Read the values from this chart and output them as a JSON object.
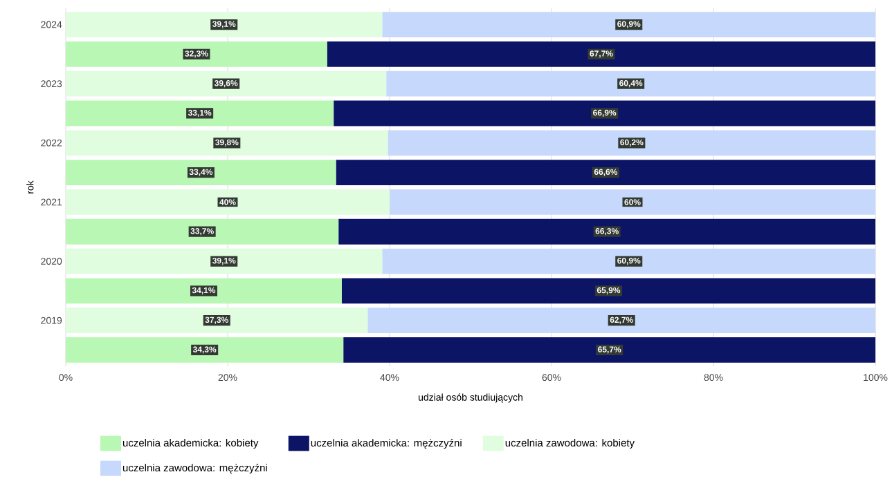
{
  "chart_data": {
    "type": "bar",
    "orientation": "horizontal",
    "stacked": true,
    "xlabel": "udział osób studiujących",
    "ylabel": "rok",
    "categories": [
      "2024",
      null,
      "2023",
      null,
      "2022",
      null,
      "2021",
      null,
      "2020",
      null,
      "2019",
      null
    ],
    "series": [
      {
        "name": "uczelnia akademicka: kobiety",
        "color": "#b9f7b4",
        "values": [
          null,
          32.3,
          null,
          33.1,
          null,
          33.4,
          null,
          33.7,
          null,
          34.1,
          null,
          34.3
        ],
        "value_labels": [
          null,
          "32,3%",
          null,
          "33,1%",
          null,
          "33,4%",
          null,
          "33,7%",
          null,
          "34,1%",
          null,
          "34,3%"
        ]
      },
      {
        "name": "uczelnia akademicka: mężczyźni",
        "color": "#0c1466",
        "values": [
          null,
          67.7,
          null,
          66.9,
          null,
          66.6,
          null,
          66.3,
          null,
          65.9,
          null,
          65.7
        ],
        "value_labels": [
          null,
          "67,7%",
          null,
          "66,9%",
          null,
          "66,6%",
          null,
          "66,3%",
          null,
          "65,9%",
          null,
          "65,7%"
        ]
      },
      {
        "name": "uczelnia zawodowa: kobiety",
        "color": "#e0fde0",
        "values": [
          39.1,
          null,
          39.6,
          null,
          39.8,
          null,
          40,
          null,
          39.1,
          null,
          37.3,
          null
        ],
        "value_labels": [
          "39,1%",
          null,
          "39,6%",
          null,
          "39,8%",
          null,
          "40%",
          null,
          "39,1%",
          null,
          "37,3%",
          null
        ]
      },
      {
        "name": "uczelnia zawodowa: mężczyźni",
        "color": "#c6d8fb",
        "values": [
          60.9,
          null,
          60.4,
          null,
          60.2,
          null,
          60,
          null,
          60.9,
          null,
          62.7,
          null
        ],
        "value_labels": [
          "60,9%",
          null,
          "60,4%",
          null,
          "60,2%",
          null,
          "60%",
          null,
          "60,9%",
          null,
          "62,7%",
          null
        ]
      }
    ],
    "xlim": [
      0,
      100
    ],
    "xticks": [
      {
        "value": 0,
        "label": "0%"
      },
      {
        "value": 20,
        "label": "20%"
      },
      {
        "value": 40,
        "label": "40%"
      },
      {
        "value": 60,
        "label": "60%"
      },
      {
        "value": 80,
        "label": "80%"
      },
      {
        "value": 100,
        "label": "100%"
      }
    ],
    "grid": "x",
    "legend": "bottom"
  }
}
